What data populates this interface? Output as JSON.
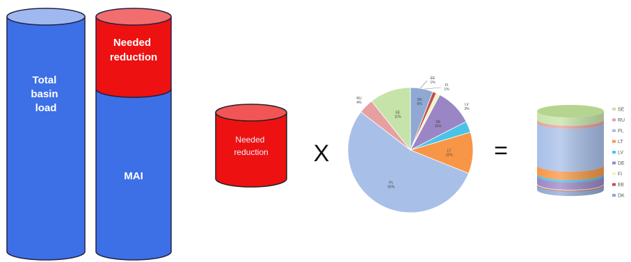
{
  "cylinders": {
    "total_label_lines": [
      "Total",
      "basin",
      "load"
    ],
    "needed_label_lines": [
      "Needed",
      "reduction"
    ],
    "mai_label": "MAI",
    "small_needed_lines": [
      "Needed",
      "reduction"
    ]
  },
  "operators": {
    "multiply": "X",
    "equals": "="
  },
  "colors": {
    "blue": "#3d6fe6",
    "red": "#ee1111",
    "outline": "#222244"
  },
  "pie": {
    "slices": [
      {
        "code": "DK",
        "pct": "6%",
        "value": 6,
        "color": "#8fa8d4"
      },
      {
        "code": "EE",
        "pct": "1%",
        "value": 1,
        "color": "#c0504d"
      },
      {
        "code": "FI",
        "pct": "1%",
        "value": 1,
        "color": "#f2f2c2"
      },
      {
        "code": "DE",
        "pct": "10%",
        "value": 10,
        "color": "#9b86c5"
      },
      {
        "code": "LV",
        "pct": "3%",
        "value": 3,
        "color": "#4bc3e6"
      },
      {
        "code": "LT",
        "pct": "11%",
        "value": 11,
        "color": "#f79646"
      },
      {
        "code": "PL",
        "pct": "56%",
        "value": 56,
        "color": "#a8bfe8"
      },
      {
        "code": "RU",
        "pct": "4%",
        "value": 4,
        "color": "#e6a0a0"
      },
      {
        "code": "SE",
        "pct": "11%",
        "value": 11,
        "color": "#c6e3a9"
      }
    ]
  },
  "legend": {
    "items": [
      {
        "code": "SE",
        "color": "#c6e3a9"
      },
      {
        "code": "RU",
        "color": "#e6a0a0"
      },
      {
        "code": "PL",
        "color": "#a8bfe8"
      },
      {
        "code": "LT",
        "color": "#f79646"
      },
      {
        "code": "LV",
        "color": "#4bc3e6"
      },
      {
        "code": "DE",
        "color": "#9b86c5"
      },
      {
        "code": "FI",
        "color": "#f2f2c2"
      },
      {
        "code": "EE",
        "color": "#c0504d"
      },
      {
        "code": "DK",
        "color": "#8fa8d4"
      }
    ]
  }
}
